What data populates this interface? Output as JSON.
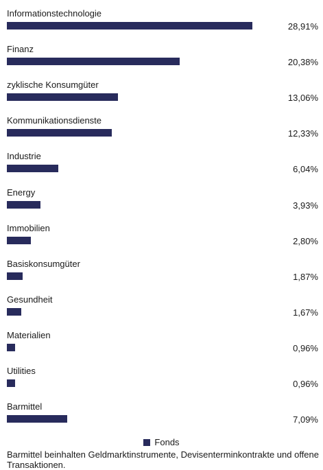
{
  "chart_data": {
    "type": "bar",
    "orientation": "horizontal",
    "categories": [
      "Informationstechnologie",
      "Finanz",
      "zyklische Konsumgüter",
      "Kommunikationsdienste",
      "Industrie",
      "Energy",
      "Immobilien",
      "Basiskonsumgüter",
      "Gesundheit",
      "Materialien",
      "Utilities",
      "Barmittel"
    ],
    "series": [
      {
        "name": "Fonds",
        "values": [
          28.91,
          20.38,
          13.06,
          12.33,
          6.04,
          3.93,
          2.8,
          1.87,
          1.67,
          0.96,
          0.96,
          7.09
        ],
        "labels": [
          "28,91%",
          "20,38%",
          "13,06%",
          "12,33%",
          "6,04%",
          "3,93%",
          "2,80%",
          "1,87%",
          "1,67%",
          "0,96%",
          "0,96%",
          "7,09%"
        ],
        "color": "#282b5c"
      }
    ],
    "xlim": [
      0,
      29.5
    ],
    "grid": false,
    "legend": "bottom-center"
  },
  "footnote": "Barmittel beinhalten Geldmarktinstrumente, Devisenterminkontrakte und offene Transaktionen."
}
